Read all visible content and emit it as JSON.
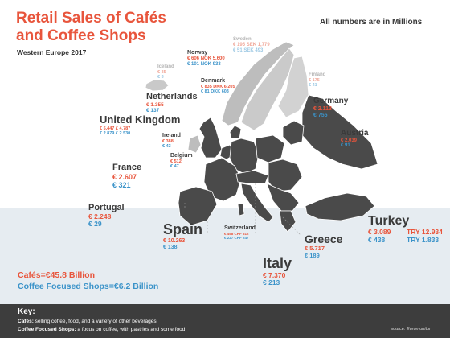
{
  "header": {
    "title_line1": "Retail Sales of Cafés",
    "title_line2": "and Coffee Shops",
    "subtitle": "Western Europe 2017",
    "units_note": "All numbers are in Millions"
  },
  "colors": {
    "cafes": "#e8553c",
    "coffee_shops": "#3b93c9",
    "map_dark": "#4a4a4a",
    "map_light": "#bdbdbd"
  },
  "countries": [
    {
      "id": "sweden",
      "name": "Sweden",
      "cafes": "€ 195",
      "cafes_local": "SEK 1,779",
      "shops": "€ 51",
      "shops_local": "SEK 493",
      "faded": true
    },
    {
      "id": "norway",
      "name": "Norway",
      "cafes": "€ 606",
      "cafes_local": "NOK 5,600",
      "shops": "€ 101",
      "shops_local": "NOK 933"
    },
    {
      "id": "iceland",
      "name": "Iceland",
      "cafes": "€ 35",
      "shops": "€ 3",
      "faded": true
    },
    {
      "id": "finland",
      "name": "Finland",
      "cafes": "€ 175",
      "shops": "€ 41",
      "faded": true
    },
    {
      "id": "denmark",
      "name": "Denmark",
      "cafes": "€ 835",
      "cafes_local": "DKK 6,205",
      "shops": "€ 81",
      "shops_local": "DKK 603"
    },
    {
      "id": "netherlands",
      "name": "Netherlands",
      "cafes": "€ 1.355",
      "shops": "€ 137"
    },
    {
      "id": "germany",
      "name": "Germany",
      "cafes": "€ 2.113",
      "shops": "€ 755"
    },
    {
      "id": "uk",
      "name": "United Kingdom",
      "cafes": "€ 5.447",
      "cafes_local": "£ 4.787",
      "shops": "€ 2.879",
      "shops_local": "£ 2.530"
    },
    {
      "id": "ireland",
      "name": "Ireland",
      "cafes": "€ 388",
      "shops": "€ 43"
    },
    {
      "id": "austria",
      "name": "Austria",
      "cafes": "€ 2.039",
      "shops": "€ 91"
    },
    {
      "id": "belgium",
      "name": "Belgium",
      "cafes": "€ 512",
      "shops": "€ 47"
    },
    {
      "id": "france",
      "name": "France",
      "cafes": "€ 2.607",
      "shops": "€ 321"
    },
    {
      "id": "portugal",
      "name": "Portugal",
      "cafes": "€ 2.248",
      "shops": "€ 29"
    },
    {
      "id": "switzerland",
      "name": "Switzerland",
      "cafes": "€ 498",
      "cafes_local": "CHF 512",
      "shops": "€ 227",
      "shops_local": "CHF 247"
    },
    {
      "id": "spain",
      "name": "Spain",
      "cafes": "€ 10.263",
      "shops": "€ 138"
    },
    {
      "id": "turkey",
      "name": "Turkey",
      "cafes": "€ 3.089",
      "cafes_local": "TRY 12.934",
      "shops": "€ 438",
      "shops_local": "TRY 1.833"
    },
    {
      "id": "greece",
      "name": "Greece",
      "cafes": "€ 5.717",
      "shops": "€ 189"
    },
    {
      "id": "italy",
      "name": "Italy",
      "cafes": "€ 7.370",
      "shops": "€ 213"
    }
  ],
  "totals": {
    "cafes": "Cafés=€45.8 Billion",
    "coffee_shops": "Coffee Focused Shops=€6.2 Billion"
  },
  "key": {
    "heading": "Key:",
    "cafes_term": "Cafés:",
    "cafes_desc": " selling coffee, food, and a variety of other beverages",
    "shops_term": "Coffee Focused Shops:",
    "shops_desc": " a focus on coffee, with pastries and some food",
    "source": "source: Euromonitor"
  }
}
